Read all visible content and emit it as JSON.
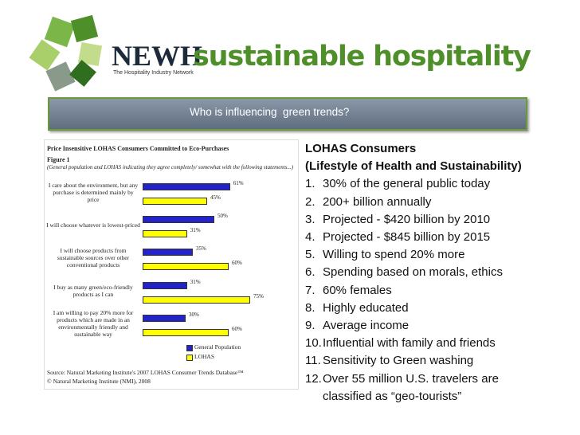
{
  "header": {
    "org": "NEWH",
    "org_tagline": "The Hospitality Industry Network",
    "title": "sustainable hospitality"
  },
  "banner": "Who is influencing  green trends?",
  "chart_data": {
    "type": "bar",
    "orientation": "horizontal",
    "title": "Price Insensitive LOHAS Consumers Committed to Eco-Purchases",
    "figure_label": "Figure 1",
    "subtitle": "(General population and LOHAS indicating they agree completely/ somewhat with the following statements...)",
    "categories": [
      "I care about the environment, but any purchase is determined mainly by price",
      "I will choose whatever is lowest-priced",
      "I will choose products from sustainable sources over other conventional products",
      "I buy as many green/eco-friendly products as I can",
      "I am willing to pay 20% more for products which are made in an environmentally friendly and sustainable way"
    ],
    "series": [
      {
        "name": "General Population",
        "color": "#2323c8",
        "values": [
          61,
          50,
          35,
          31,
          30
        ],
        "value_labels": [
          "61%",
          "50%",
          "35%",
          "31%",
          "30%"
        ]
      },
      {
        "name": "LOHAS",
        "color": "#ffff00",
        "values": [
          45,
          31,
          60,
          75,
          60
        ],
        "value_labels": [
          "45%",
          "31%",
          "60%",
          "75%",
          "60%"
        ]
      }
    ],
    "source": [
      "Source: Natural Marketing Institute's 2007 LOHAS Consumer Trends Database™",
      "© Natural Marketing Institute (NMI), 2008"
    ]
  },
  "list": {
    "heading": [
      "LOHAS Consumers",
      "(Lifestyle of Health and Sustainability)"
    ],
    "items": [
      {
        "number": "1.",
        "text": "30% of the general public today"
      },
      {
        "number": "2.",
        "text": "200+ billion annually"
      },
      {
        "number": "3.",
        "text": "Projected - $420 billion by 2010"
      },
      {
        "number": "4.",
        "text": "Projected - $845 billion by 2015"
      },
      {
        "number": "5.",
        "text": "Willing to spend 20% more"
      },
      {
        "number": "6.",
        "text": "Spending based on morals, ethics"
      },
      {
        "number": "7.",
        "text": "60% females"
      },
      {
        "number": "8.",
        "text": "Highly educated"
      },
      {
        "number": "9.",
        "text": "Average income"
      },
      {
        "number": "10.",
        "text": "Influential with family and friends"
      },
      {
        "number": "11.",
        "text": "Sensitivity to Green washing"
      },
      {
        "number": "12.",
        "text": "Over 55 million U.S. travelers are classified as “geo-tourists”"
      }
    ]
  }
}
